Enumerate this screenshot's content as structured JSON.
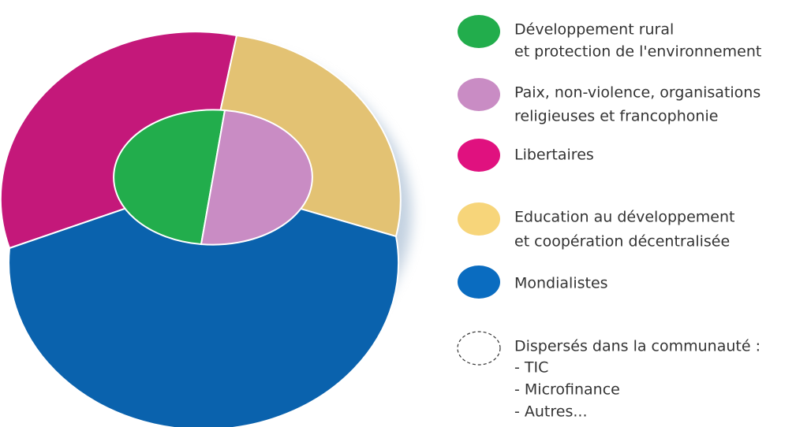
{
  "legend": [
    {
      "lines": [
        "Développement rural",
        "et protection de l'environnement"
      ]
    },
    {
      "lines": [
        "Paix, non-violence, organisations",
        "religieuses et francophonie"
      ]
    },
    {
      "lines": [
        "Libertaires"
      ]
    },
    {
      "lines": [
        "Education au développement",
        "et coopération décentralisée"
      ]
    },
    {
      "lines": [
        "Mondialistes"
      ]
    },
    {
      "lines": [
        "Dispersés dans la communauté :",
        "- TIC",
        "- Microfinance",
        "- Autres..."
      ]
    }
  ]
}
